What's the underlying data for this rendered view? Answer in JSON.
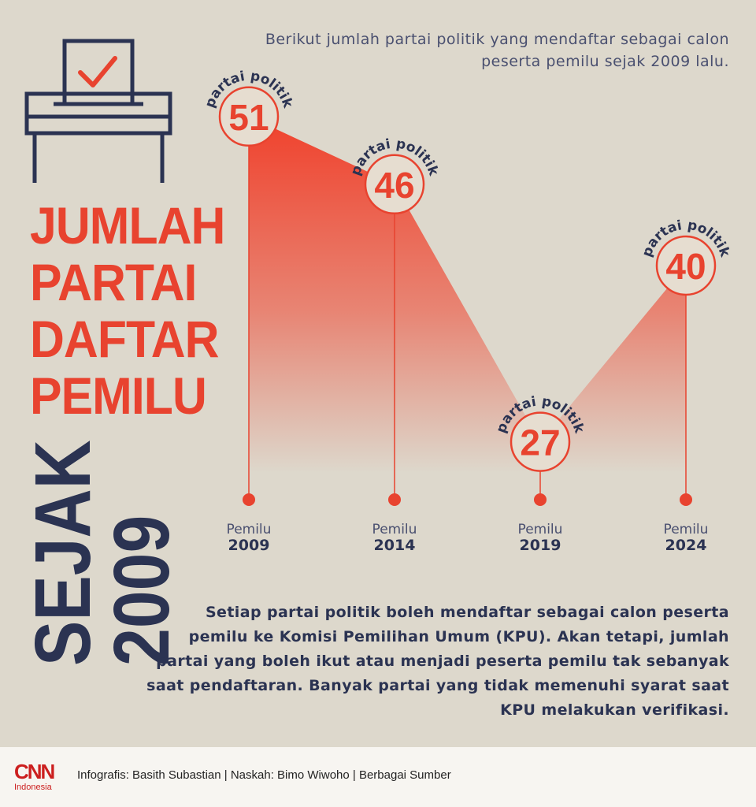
{
  "title": {
    "lines": [
      "JUMLAH",
      "PARTAI",
      "DAFTAR",
      "PEMILU"
    ],
    "side_lines": [
      "SEJAK",
      "2009"
    ]
  },
  "subtitle": "Berikut jumlah partai politik yang mendaftar sebagai calon peserta pemilu sejak 2009 lalu.",
  "chart_data": {
    "type": "area",
    "title": "",
    "xlabel": "",
    "ylabel": "",
    "x_prefix": "Pemilu",
    "categories": [
      "2009",
      "2014",
      "2019",
      "2024"
    ],
    "values": [
      51,
      46,
      27,
      40
    ],
    "point_label": "partai politik",
    "ylim": [
      0,
      60
    ],
    "grid": false,
    "colors": {
      "fill": "#f0412c",
      "marker": "#e8432f",
      "stem": "#e8432f"
    }
  },
  "body_text": "Setiap partai politik boleh mendaftar sebagai calon peserta pemilu ke Komisi Pemilihan Umum (KPU). Akan tetapi, jumlah partai yang boleh ikut atau menjadi peserta pemilu tak sebanyak saat pendaftaran. Banyak partai yang tidak memenuhi syarat saat KPU melakukan verifikasi.",
  "footer": {
    "logo_text": "CNN",
    "logo_sub": "Indonesia",
    "credits": "Infografis: Basith Subastian | Naskah: Bimo Wiwoho | Berbagai Sumber"
  },
  "colors": {
    "background": "#ddd8cc",
    "accent": "#e8432f",
    "navy": "#2b3352"
  }
}
